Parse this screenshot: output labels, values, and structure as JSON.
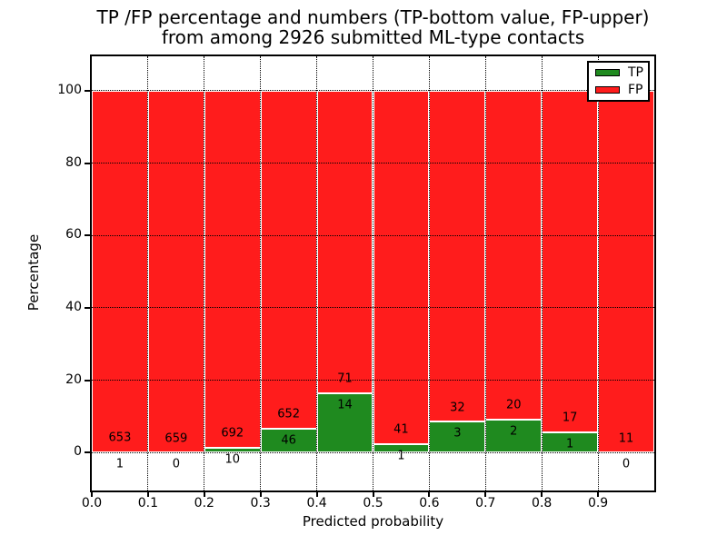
{
  "chart_data": {
    "type": "bar",
    "stacked": true,
    "title_line1": "TP /FP percentage and numbers (TP-bottom value, FP-upper)",
    "title_line2": "from among 2926 submitted ML-type contacts",
    "xlabel": "Predicted probability",
    "ylabel": "Percentage",
    "total_contacts": 2926,
    "legend": [
      "TP",
      "FP"
    ],
    "colors": {
      "tp": "#1f8a1f",
      "fp": "#ff1c1c"
    },
    "grid": "dotted black, vertical at x ticks and horizontal at y ticks",
    "legend_position": "upper right",
    "xtick_labels": [
      "0.0",
      "0.1",
      "0.2",
      "0.3",
      "0.4",
      "0.5",
      "0.6",
      "0.7",
      "0.8",
      "0.9"
    ],
    "yticks": [
      0,
      20,
      40,
      60,
      80,
      100
    ],
    "ylim": [
      -10.5,
      109.5
    ],
    "xlim": [
      0.0,
      1.0
    ],
    "bin_width": 0.1,
    "bins": [
      {
        "x0": 0.0,
        "x1": 0.1,
        "tp": 1,
        "fp": 653,
        "tp_pct": 0.15
      },
      {
        "x0": 0.1,
        "x1": 0.2,
        "tp": 0,
        "fp": 659,
        "tp_pct": 0.0
      },
      {
        "x0": 0.2,
        "x1": 0.3,
        "tp": 10,
        "fp": 692,
        "tp_pct": 1.42
      },
      {
        "x0": 0.3,
        "x1": 0.4,
        "tp": 46,
        "fp": 652,
        "tp_pct": 6.59
      },
      {
        "x0": 0.4,
        "x1": 0.5,
        "tp": 14,
        "fp": 71,
        "tp_pct": 16.47
      },
      {
        "x0": 0.5,
        "x1": 0.6,
        "tp": 1,
        "fp": 41,
        "tp_pct": 2.38
      },
      {
        "x0": 0.6,
        "x1": 0.7,
        "tp": 3,
        "fp": 32,
        "tp_pct": 8.57
      },
      {
        "x0": 0.7,
        "x1": 0.8,
        "tp": 2,
        "fp": 20,
        "tp_pct": 9.09
      },
      {
        "x0": 0.8,
        "x1": 0.9,
        "tp": 1,
        "fp": 17,
        "tp_pct": 5.56
      },
      {
        "x0": 0.9,
        "x1": 1.0,
        "tp": 0,
        "fp": 11,
        "tp_pct": 0.0
      }
    ]
  }
}
